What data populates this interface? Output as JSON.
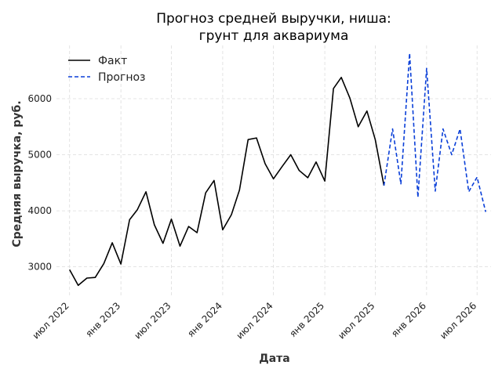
{
  "chart_data": {
    "type": "line",
    "title_lines": [
      "Прогноз средней выручки, ниша:",
      "грунт для аквариума"
    ],
    "xlabel": "Дата",
    "ylabel": "Средняя выручка, руб.",
    "ylim": [
      2450,
      6950
    ],
    "xlim": [
      "2022-05-15",
      "2026-08-20"
    ],
    "yticks": [
      3000,
      4000,
      5000,
      6000
    ],
    "ytick_labels": [
      "3000",
      "4000",
      "5000",
      "6000"
    ],
    "xticks": [
      "2022-07-01",
      "2023-01-01",
      "2023-07-01",
      "2024-01-01",
      "2024-07-01",
      "2025-01-01",
      "2025-07-01",
      "2026-01-01",
      "2026-07-01"
    ],
    "xtick_labels": [
      "июл 2022",
      "янв 2023",
      "июл 2023",
      "янв 2024",
      "июл 2024",
      "янв 2025",
      "июл 2025",
      "янв 2026",
      "июл 2026"
    ],
    "grid": true,
    "legend_position": "top-left",
    "series": [
      {
        "name": "Факт",
        "color": "#000000",
        "style": "solid",
        "x": [
          "2022-07-01",
          "2022-08-01",
          "2022-09-01",
          "2022-10-01",
          "2022-11-01",
          "2022-12-01",
          "2023-01-01",
          "2023-02-01",
          "2023-03-01",
          "2023-04-01",
          "2023-05-01",
          "2023-06-01",
          "2023-07-01",
          "2023-08-01",
          "2023-09-01",
          "2023-10-01",
          "2023-11-01",
          "2023-12-01",
          "2024-01-01",
          "2024-02-01",
          "2024-03-01",
          "2024-04-01",
          "2024-05-01",
          "2024-06-01",
          "2024-07-01",
          "2024-08-01",
          "2024-09-01",
          "2024-10-01",
          "2024-11-01",
          "2024-12-01",
          "2025-01-01",
          "2025-02-01",
          "2025-03-01",
          "2025-04-01",
          "2025-05-01",
          "2025-06-01",
          "2025-07-01",
          "2025-08-01"
        ],
        "y": [
          2950,
          2670,
          2800,
          2810,
          3060,
          3430,
          3050,
          3840,
          4020,
          4340,
          3750,
          3420,
          3850,
          3370,
          3720,
          3610,
          4320,
          4540,
          3660,
          3930,
          4370,
          5270,
          5300,
          4840,
          4570,
          4790,
          5000,
          4720,
          4590,
          4870,
          4530,
          6180,
          6380,
          6010,
          5500,
          5780,
          5270,
          4450
        ]
      },
      {
        "name": "Прогноз",
        "color": "#0a3fd8",
        "style": "dashed",
        "x": [
          "2025-08-01",
          "2025-09-01",
          "2025-10-01",
          "2025-11-01",
          "2025-12-01",
          "2026-01-01",
          "2026-02-01",
          "2026-03-01",
          "2026-04-01",
          "2026-05-01",
          "2026-06-01",
          "2026-07-01",
          "2026-08-01"
        ],
        "y": [
          4450,
          5460,
          4480,
          6810,
          4240,
          6540,
          4350,
          5460,
          5000,
          5460,
          4340,
          4600,
          3980
        ]
      }
    ]
  }
}
